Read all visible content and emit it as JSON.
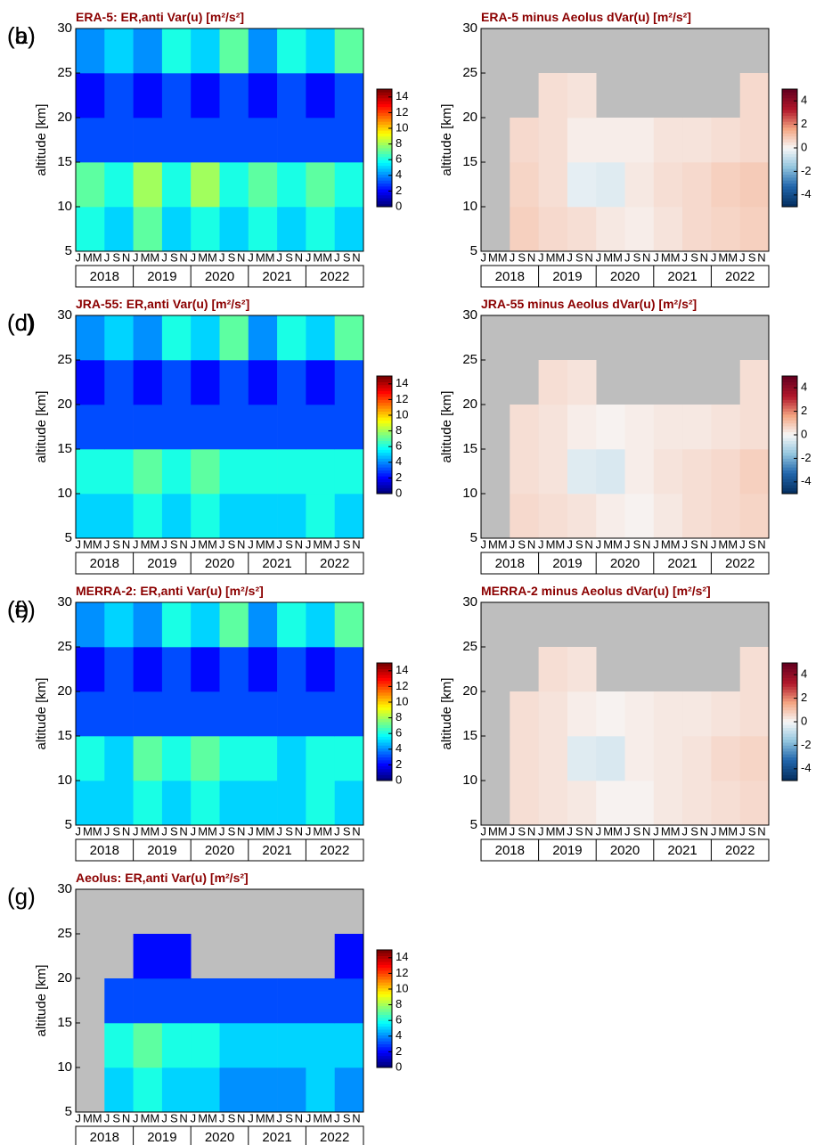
{
  "chart_data": [
    {
      "type": "heatmap",
      "panel_label": "(a)",
      "title": "ERA-5:  ER,anti  Var(u) [m²/s²]",
      "ylabel": "altitude [km]",
      "ylim": [
        5,
        30
      ],
      "yticks": [
        5,
        10,
        15,
        20,
        25,
        30
      ],
      "month_labels": [
        "J",
        "M",
        "M",
        "J",
        "S",
        "N"
      ],
      "years": [
        "2018",
        "2019",
        "2020",
        "2021",
        "2022"
      ],
      "z": [
        [
          6,
          5,
          7,
          5,
          6,
          5,
          6,
          5,
          6,
          5
        ],
        [
          7,
          6,
          8,
          6,
          8,
          6,
          7,
          6,
          7,
          6
        ],
        [
          3,
          3,
          3,
          3,
          3,
          3,
          3,
          3,
          3,
          3
        ],
        [
          2,
          3,
          2,
          3,
          2,
          3,
          2,
          3,
          2,
          3
        ],
        [
          4,
          5,
          4,
          6,
          5,
          7,
          4,
          6,
          5,
          7
        ]
      ],
      "zlim": [
        0,
        15
      ],
      "zticks": [
        0,
        2,
        4,
        6,
        8,
        10,
        12,
        14
      ],
      "colorscale": [
        "#00007f",
        "#0000ff",
        "#007fff",
        "#00ffff",
        "#7fff7f",
        "#ffff00",
        "#ff7f00",
        "#ff0000",
        "#7f0000"
      ]
    },
    {
      "type": "heatmap",
      "panel_label": "(b)",
      "title": "ERA-5 minus Aeolus  dVar(u) [m²/s²]",
      "ylabel": "altitude [km]",
      "ylim": [
        5,
        30
      ],
      "yticks": [
        5,
        10,
        15,
        20,
        25,
        30
      ],
      "month_labels": [
        "J",
        "M",
        "M",
        "J",
        "S",
        "N"
      ],
      "years": [
        "2018",
        "2019",
        "2020",
        "2021",
        "2022"
      ],
      "z": [
        [
          null,
          0.8,
          0.6,
          0.5,
          0.3,
          0.2,
          0.4,
          0.6,
          0.7,
          0.8
        ],
        [
          null,
          0.7,
          0.5,
          -0.3,
          -0.4,
          0.3,
          0.5,
          0.6,
          0.8,
          0.9
        ],
        [
          null,
          0.6,
          0.5,
          0.2,
          0.2,
          0.2,
          0.4,
          0.4,
          0.5,
          0.6
        ],
        [
          null,
          null,
          0.5,
          0.4,
          null,
          null,
          null,
          null,
          null,
          0.6
        ],
        [
          null,
          null,
          null,
          null,
          null,
          null,
          null,
          null,
          null,
          null
        ]
      ],
      "zlim": [
        -5,
        5
      ],
      "zticks": [
        -4,
        -2,
        0,
        2,
        4
      ],
      "colorscale": [
        "#053061",
        "#2166ac",
        "#92c5de",
        "#f7f7f7",
        "#f4a582",
        "#b2182b",
        "#67001f"
      ]
    },
    {
      "type": "heatmap",
      "panel_label": "(c)",
      "title": "JRA-55:  ER,anti  Var(u) [m²/s²]",
      "ylabel": "altitude [km]",
      "ylim": [
        5,
        30
      ],
      "yticks": [
        5,
        10,
        15,
        20,
        25,
        30
      ],
      "month_labels": [
        "J",
        "M",
        "M",
        "J",
        "S",
        "N"
      ],
      "years": [
        "2018",
        "2019",
        "2020",
        "2021",
        "2022"
      ],
      "z": [
        [
          5,
          5,
          6,
          5,
          6,
          5,
          5,
          5,
          6,
          5
        ],
        [
          6,
          6,
          7,
          6,
          7,
          6,
          6,
          6,
          6,
          6
        ],
        [
          3,
          3,
          3,
          3,
          3,
          3,
          3,
          3,
          3,
          3
        ],
        [
          2,
          3,
          2,
          3,
          2,
          3,
          2,
          3,
          2,
          3
        ],
        [
          4,
          5,
          4,
          6,
          5,
          7,
          4,
          6,
          5,
          7
        ]
      ],
      "zlim": [
        0,
        15
      ],
      "zticks": [
        0,
        2,
        4,
        6,
        8,
        10,
        12,
        14
      ],
      "colorscale": [
        "#00007f",
        "#0000ff",
        "#007fff",
        "#00ffff",
        "#7fff7f",
        "#ffff00",
        "#ff7f00",
        "#ff0000",
        "#7f0000"
      ]
    },
    {
      "type": "heatmap",
      "panel_label": "(d)",
      "title": "JRA-55 minus Aeolus  dVar(u) [m²/s²]",
      "ylabel": "altitude [km]",
      "ylim": [
        5,
        30
      ],
      "yticks": [
        5,
        10,
        15,
        20,
        25,
        30
      ],
      "month_labels": [
        "J",
        "M",
        "M",
        "J",
        "S",
        "N"
      ],
      "years": [
        "2018",
        "2019",
        "2020",
        "2021",
        "2022"
      ],
      "z": [
        [
          null,
          0.6,
          0.5,
          0.4,
          0.2,
          0.1,
          0.3,
          0.5,
          0.6,
          0.7
        ],
        [
          null,
          0.5,
          0.4,
          -0.4,
          -0.5,
          0.2,
          0.4,
          0.5,
          0.6,
          0.8
        ],
        [
          null,
          0.5,
          0.4,
          0.2,
          0.1,
          0.2,
          0.3,
          0.3,
          0.4,
          0.5
        ],
        [
          null,
          null,
          0.5,
          0.4,
          null,
          null,
          null,
          null,
          null,
          0.5
        ],
        [
          null,
          null,
          null,
          null,
          null,
          null,
          null,
          null,
          null,
          null
        ]
      ],
      "zlim": [
        -5,
        5
      ],
      "zticks": [
        -4,
        -2,
        0,
        2,
        4
      ],
      "colorscale": [
        "#053061",
        "#2166ac",
        "#92c5de",
        "#f7f7f7",
        "#f4a582",
        "#b2182b",
        "#67001f"
      ]
    },
    {
      "type": "heatmap",
      "panel_label": "(e)",
      "title": "MERRA-2:  ER,anti  Var(u) [m²/s²]",
      "ylabel": "altitude [km]",
      "ylim": [
        5,
        30
      ],
      "yticks": [
        5,
        10,
        15,
        20,
        25,
        30
      ],
      "month_labels": [
        "J",
        "M",
        "M",
        "J",
        "S",
        "N"
      ],
      "years": [
        "2018",
        "2019",
        "2020",
        "2021",
        "2022"
      ],
      "z": [
        [
          5,
          5,
          6,
          5,
          6,
          5,
          5,
          5,
          6,
          5
        ],
        [
          6,
          5,
          7,
          6,
          7,
          6,
          6,
          5,
          6,
          6
        ],
        [
          3,
          3,
          3,
          3,
          3,
          3,
          3,
          3,
          3,
          3
        ],
        [
          2,
          3,
          2,
          3,
          2,
          3,
          2,
          3,
          2,
          3
        ],
        [
          4,
          5,
          4,
          6,
          5,
          7,
          4,
          6,
          5,
          7
        ]
      ],
      "zlim": [
        0,
        15
      ],
      "zticks": [
        0,
        2,
        4,
        6,
        8,
        10,
        12,
        14
      ],
      "colorscale": [
        "#00007f",
        "#0000ff",
        "#007fff",
        "#00ffff",
        "#7fff7f",
        "#ffff00",
        "#ff7f00",
        "#ff0000",
        "#7f0000"
      ]
    },
    {
      "type": "heatmap",
      "panel_label": "(f)",
      "title": "MERRA-2 minus Aeolus  dVar(u) [m²/s²]",
      "ylabel": "altitude [km]",
      "ylim": [
        5,
        30
      ],
      "yticks": [
        5,
        10,
        15,
        20,
        25,
        30
      ],
      "month_labels": [
        "J",
        "M",
        "M",
        "J",
        "S",
        "N"
      ],
      "years": [
        "2018",
        "2019",
        "2020",
        "2021",
        "2022"
      ],
      "z": [
        [
          null,
          0.5,
          0.4,
          0.3,
          0.1,
          0.1,
          0.3,
          0.4,
          0.5,
          0.6
        ],
        [
          null,
          0.5,
          0.4,
          -0.4,
          -0.5,
          0.2,
          0.3,
          0.4,
          0.6,
          0.7
        ],
        [
          null,
          0.5,
          0.4,
          0.2,
          0.1,
          0.2,
          0.3,
          0.3,
          0.4,
          0.5
        ],
        [
          null,
          null,
          0.5,
          0.4,
          null,
          null,
          null,
          null,
          null,
          0.5
        ],
        [
          null,
          null,
          null,
          null,
          null,
          null,
          null,
          null,
          null,
          null
        ]
      ],
      "zlim": [
        -5,
        5
      ],
      "zticks": [
        -4,
        -2,
        0,
        2,
        4
      ],
      "colorscale": [
        "#053061",
        "#2166ac",
        "#92c5de",
        "#f7f7f7",
        "#f4a582",
        "#b2182b",
        "#67001f"
      ]
    },
    {
      "type": "heatmap",
      "panel_label": "(g)",
      "title": "Aeolus:  ER,anti  Var(u) [m²/s²]",
      "ylabel": "altitude [km]",
      "ylim": [
        5,
        30
      ],
      "yticks": [
        5,
        10,
        15,
        20,
        25,
        30
      ],
      "month_labels": [
        "J",
        "M",
        "M",
        "J",
        "S",
        "N"
      ],
      "years": [
        "2018",
        "2019",
        "2020",
        "2021",
        "2022"
      ],
      "z": [
        [
          null,
          5,
          6,
          5,
          5,
          4,
          4,
          4,
          5,
          4
        ],
        [
          null,
          6,
          7,
          6,
          6,
          5,
          5,
          5,
          5,
          5
        ],
        [
          null,
          3,
          3,
          3,
          3,
          3,
          3,
          3,
          3,
          3
        ],
        [
          null,
          null,
          2,
          2,
          null,
          null,
          null,
          null,
          null,
          2
        ],
        [
          null,
          null,
          null,
          null,
          null,
          null,
          null,
          null,
          null,
          null
        ]
      ],
      "zlim": [
        0,
        15
      ],
      "zticks": [
        0,
        2,
        4,
        6,
        8,
        10,
        12,
        14
      ],
      "colorscale": [
        "#00007f",
        "#0000ff",
        "#007fff",
        "#00ffff",
        "#7fff7f",
        "#ffff00",
        "#ff7f00",
        "#ff0000",
        "#7f0000"
      ]
    }
  ]
}
